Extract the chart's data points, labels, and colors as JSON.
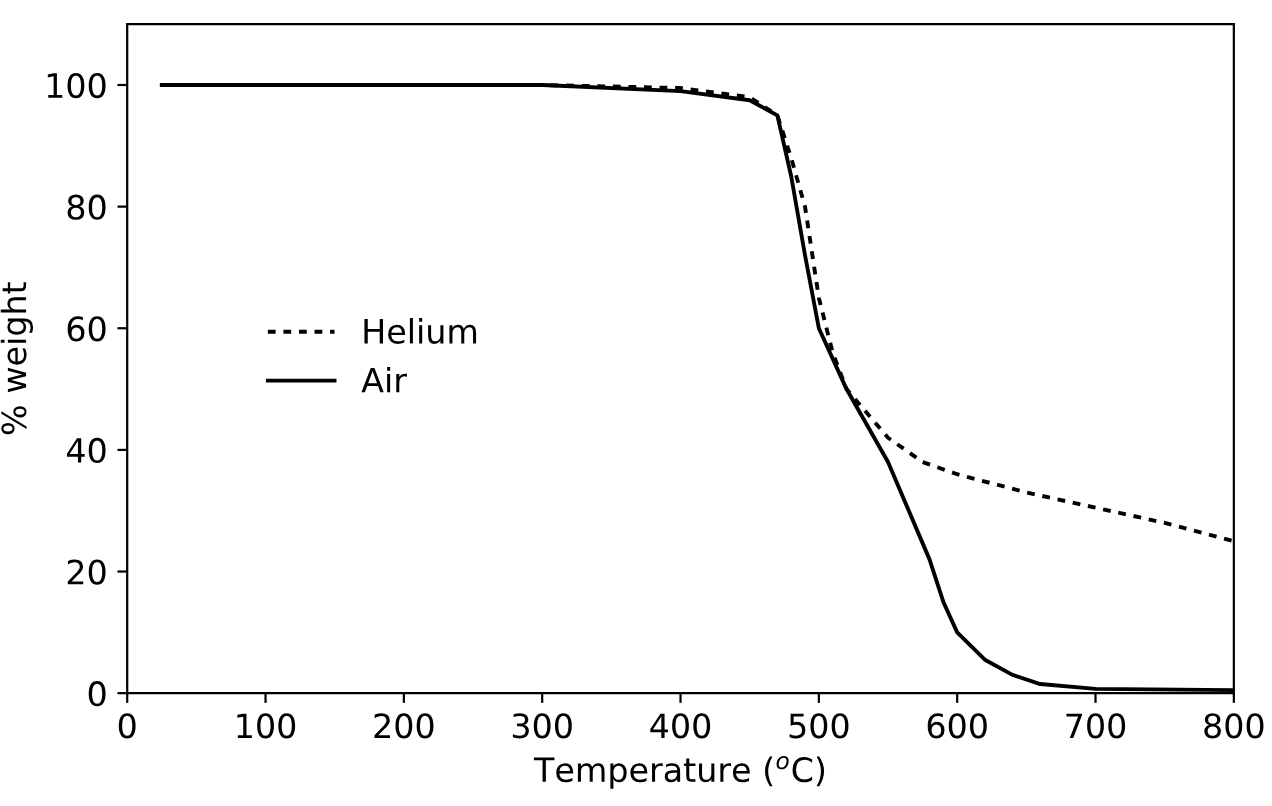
{
  "chart_data": {
    "type": "line",
    "xlabel": "Temperature ($^{o}$C)",
    "ylabel": "% weight",
    "xlim": [
      0,
      800
    ],
    "ylim": [
      0,
      110
    ],
    "xticks": [
      0,
      100,
      200,
      300,
      400,
      500,
      600,
      700,
      800
    ],
    "yticks": [
      0,
      20,
      40,
      60,
      80,
      100
    ],
    "grid": false,
    "legend": "left",
    "marker": "none",
    "series": [
      {
        "name": "Helium",
        "color": "#000000",
        "line_style": "dotted",
        "x": [
          25,
          200,
          300,
          400,
          450,
          470,
          480,
          490,
          500,
          510,
          520,
          550,
          575,
          600,
          650,
          700,
          750,
          800
        ],
        "values": [
          100,
          100,
          100,
          99.5,
          98,
          95,
          88,
          80,
          65,
          56,
          50,
          42,
          38,
          36,
          33,
          30.5,
          28,
          25
        ]
      },
      {
        "name": "Air",
        "color": "#000000",
        "line_style": "solid",
        "x": [
          25,
          200,
          300,
          400,
          450,
          470,
          480,
          490,
          500,
          520,
          550,
          580,
          590,
          600,
          620,
          640,
          660,
          700,
          800
        ],
        "values": [
          100,
          100,
          100,
          99,
          97.5,
          95,
          85,
          72,
          60,
          50,
          38,
          22,
          15,
          10,
          5.5,
          3,
          1.5,
          0.7,
          0.5
        ]
      }
    ]
  }
}
